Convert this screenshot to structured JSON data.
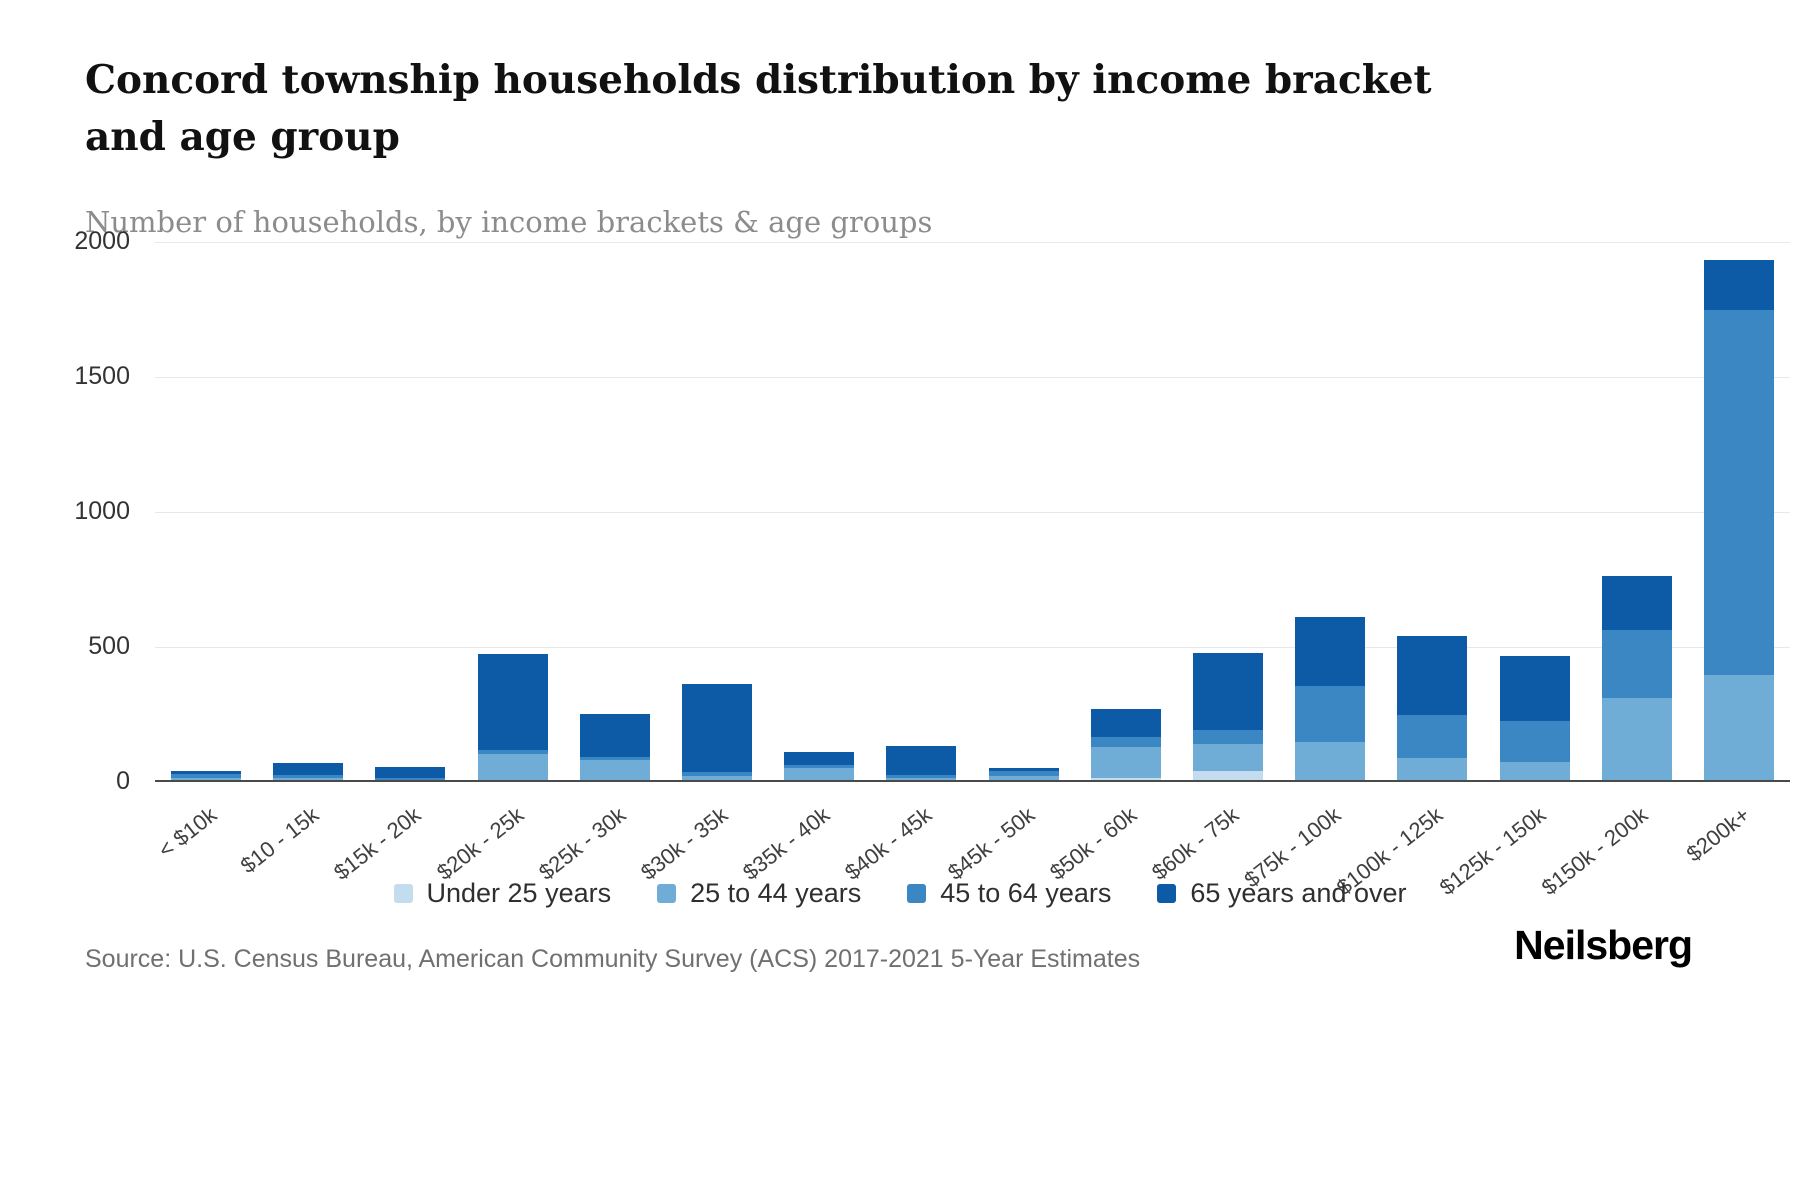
{
  "header": {
    "title": "Concord township households distribution by income bracket and age group",
    "subtitle": "Number of households, by income brackets & age groups"
  },
  "chart_data": {
    "type": "bar",
    "stacked": true,
    "title": "Concord township households distribution by income bracket and age group",
    "xlabel": "",
    "ylabel": "Number of households",
    "ylim": [
      0,
      2000
    ],
    "yticks": [
      0,
      500,
      1000,
      1500,
      2000
    ],
    "grid": "horizontal",
    "legend_position": "bottom",
    "categories": [
      "< $10k",
      "$10 - 15k",
      "$15k - 20k",
      "$20k - 25k",
      "$25k - 30k",
      "$30k - 35k",
      "$35k - 40k",
      "$40k - 45k",
      "$45k - 50k",
      "$50k - 60k",
      "$60k - 75k",
      "$75k - 100k",
      "$100k - 125k",
      "$125k - 150k",
      "$150k - 200k",
      "$200k+"
    ],
    "series": [
      {
        "name": "Under 25 years",
        "color": "#c3dcee",
        "values": [
          0,
          0,
          0,
          0,
          0,
          0,
          0,
          0,
          0,
          8,
          35,
          0,
          0,
          0,
          0,
          0
        ]
      },
      {
        "name": "25 to 44 years",
        "color": "#6fadd6",
        "values": [
          8,
          6,
          0,
          95,
          75,
          15,
          45,
          8,
          15,
          115,
          100,
          140,
          80,
          65,
          305,
          390
        ]
      },
      {
        "name": "45 to 64 years",
        "color": "#3a87c4",
        "values": [
          13,
          13,
          8,
          15,
          10,
          15,
          10,
          10,
          20,
          35,
          50,
          210,
          160,
          155,
          250,
          1350
        ]
      },
      {
        "name": "65 years and over",
        "color": "#0d5aa7",
        "values": [
          12,
          45,
          40,
          355,
          160,
          325,
          50,
          107,
          10,
          105,
          285,
          255,
          295,
          240,
          200,
          185
        ]
      }
    ]
  },
  "footer": {
    "source": "Source: U.S. Census Bureau, American Community Survey (ACS) 2017-2021 5-Year Estimates",
    "logo": "Neilsberg"
  }
}
